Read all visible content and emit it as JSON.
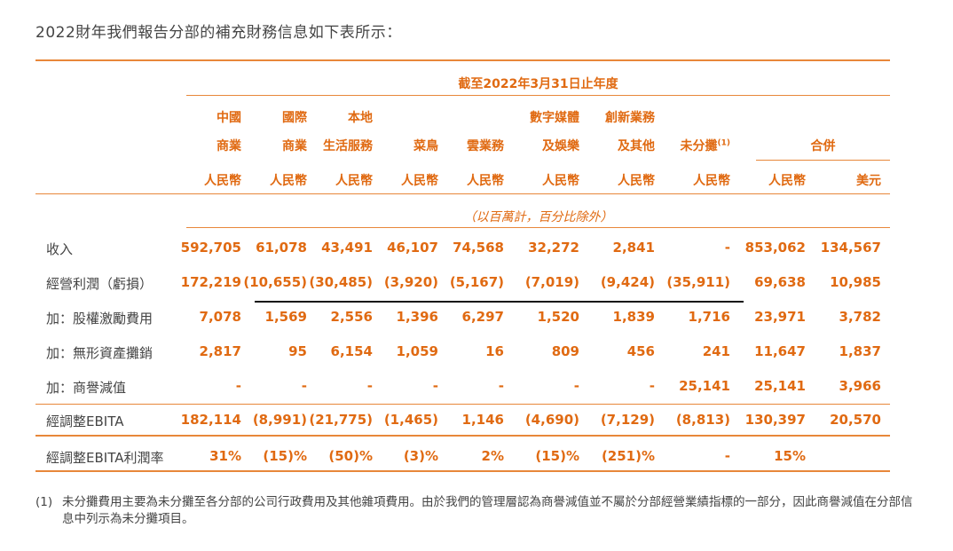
{
  "intro": "2022財年我們報告分部的補充財務信息如下表所示：",
  "period_header": "截至2022年3月31日止年度",
  "unit_note": "（以百萬計，百分比除外）",
  "columns": [
    {
      "line1": "中國",
      "line2": "商業",
      "currency": "人民幣"
    },
    {
      "line1": "國際",
      "line2": "商業",
      "currency": "人民幣"
    },
    {
      "line1": "本地",
      "line2": "生活服務",
      "currency": "人民幣"
    },
    {
      "line1": "",
      "line2": "菜鳥",
      "currency": "人民幣"
    },
    {
      "line1": "",
      "line2": "雲業務",
      "currency": "人民幣"
    },
    {
      "line1": "數字媒體",
      "line2": "及娛樂",
      "currency": "人民幣"
    },
    {
      "line1": "創新業務",
      "line2": "及其他",
      "currency": "人民幣"
    },
    {
      "line1": "",
      "line2": "未分攤",
      "sup": "(1)",
      "currency": "人民幣"
    },
    {
      "line1": "",
      "line2": "",
      "currency": "人民幣"
    },
    {
      "line1": "",
      "line2": "",
      "currency": "美元"
    }
  ],
  "combined_header": "合併",
  "rows": [
    {
      "label": "收入",
      "values": [
        "592,705",
        "61,078",
        "43,491",
        "46,107",
        "74,568",
        "32,272",
        "2,841",
        "-",
        "853,062",
        "134,567"
      ]
    },
    {
      "label": "經營利潤（虧損）",
      "values": [
        "172,219",
        "(10,655)",
        "(30,485)",
        "(3,920)",
        "(5,167)",
        "(7,019)",
        "(9,424)",
        "(35,911)",
        "69,638",
        "10,985"
      ]
    },
    {
      "label": "加：股權激勵費用",
      "values": [
        "7,078",
        "1,569",
        "2,556",
        "1,396",
        "6,297",
        "1,520",
        "1,839",
        "1,716",
        "23,971",
        "3,782"
      ]
    },
    {
      "label": "加：無形資產攤銷",
      "values": [
        "2,817",
        "95",
        "6,154",
        "1,059",
        "16",
        "809",
        "456",
        "241",
        "11,647",
        "1,837"
      ]
    },
    {
      "label": "加：商譽減值",
      "values": [
        "-",
        "-",
        "-",
        "-",
        "-",
        "-",
        "-",
        "25,141",
        "25,141",
        "3,966"
      ]
    },
    {
      "label": "經調整EBITA",
      "values": [
        "182,114",
        "(8,991)",
        "(21,775)",
        "(1,465)",
        "1,146",
        "(4,690)",
        "(7,129)",
        "(8,813)",
        "130,397",
        "20,570"
      ]
    },
    {
      "label": "經調整EBITA利潤率",
      "values": [
        "31%",
        "(15)%",
        "(50)%",
        "(3)%",
        "2%",
        "(15)%",
        "(251)%",
        "-",
        "15%",
        ""
      ]
    }
  ],
  "footnote": {
    "num": "(1)",
    "text": "未分攤費用主要為未分攤至各分部的公司行政費用及其他雜項費用。由於我們的管理層認為商譽減值並不屬於分部經營業績指標的一部分，因此商譽減值在分部信息中列示為未分攤項目。"
  }
}
